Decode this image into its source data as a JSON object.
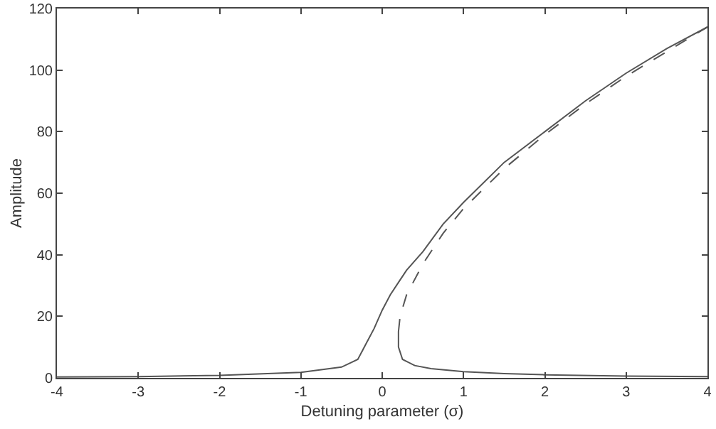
{
  "chart_data": {
    "type": "line",
    "xlabel": "Detuning parameter (σ)",
    "ylabel": "Amplitude",
    "xlim": [
      -4,
      4
    ],
    "ylim": [
      0,
      120
    ],
    "xticks": [
      -4,
      -3,
      -2,
      -1,
      0,
      1,
      2,
      3,
      4
    ],
    "yticks": [
      0,
      20,
      40,
      60,
      80,
      100,
      120
    ],
    "marker": "none",
    "series": [
      {
        "color": "#555555",
        "line_style": "solid",
        "x": [
          -4,
          -3,
          -2,
          -1,
          -0.5,
          -0.3,
          -0.2,
          -0.1,
          0,
          0.1,
          0.2,
          0.3,
          0.5,
          0.75,
          1,
          1.5,
          2,
          2.5,
          3,
          3.5,
          4
        ],
        "values": [
          0.3,
          0.4,
          0.8,
          1.8,
          3.5,
          6,
          11,
          16,
          22,
          27,
          31,
          35,
          41,
          50,
          57,
          70,
          80,
          90,
          99,
          107,
          114
        ]
      },
      {
        "color": "#555555",
        "line_style": "dashed",
        "x": [
          0.2,
          0.22,
          0.3,
          0.5,
          0.75,
          1,
          1.5,
          2,
          2.5,
          3,
          3.5,
          4
        ],
        "values": [
          15,
          20,
          27,
          37,
          47,
          55,
          68,
          79,
          89,
          98,
          106,
          114
        ]
      },
      {
        "color": "#555555",
        "line_style": "solid",
        "x": [
          0.2,
          0.2,
          0.25,
          0.4,
          0.6,
          1,
          1.5,
          2,
          3,
          4
        ],
        "values": [
          15,
          10,
          6,
          4,
          3,
          2,
          1.4,
          1,
          0.6,
          0.4
        ]
      }
    ]
  }
}
